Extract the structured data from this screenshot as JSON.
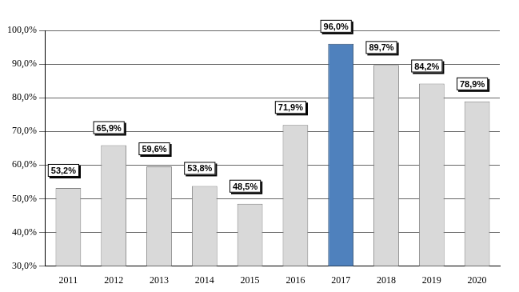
{
  "chart_data": {
    "type": "bar",
    "categories": [
      "2011",
      "2012",
      "2013",
      "2014",
      "2015",
      "2016",
      "2017",
      "2018",
      "2019",
      "2020"
    ],
    "values": [
      53.2,
      65.9,
      59.6,
      53.8,
      48.5,
      71.9,
      96.0,
      89.7,
      84.2,
      78.9
    ],
    "value_labels": [
      "53,2%",
      "65,9%",
      "59,6%",
      "53,8%",
      "48,5%",
      "71,9%",
      "96,0%",
      "89,7%",
      "84,2%",
      "78,9%"
    ],
    "colors": [
      "#d9d9d9",
      "#d9d9d9",
      "#d9d9d9",
      "#d9d9d9",
      "#d9d9d9",
      "#d9d9d9",
      "#4f81bd",
      "#d9d9d9",
      "#d9d9d9",
      "#d9d9d9"
    ],
    "ylim": [
      30,
      100
    ],
    "yticks": [
      {
        "value": 30,
        "label": "30,0%"
      },
      {
        "value": 40,
        "label": "40,0%"
      },
      {
        "value": 50,
        "label": "50,0%"
      },
      {
        "value": 60,
        "label": "60,0%"
      },
      {
        "value": 70,
        "label": "70,0%"
      },
      {
        "value": 80,
        "label": "80,0%"
      },
      {
        "value": 90,
        "label": "90,0%"
      },
      {
        "value": 100,
        "label": "100,0%"
      }
    ],
    "grid": true,
    "data_labels": true
  }
}
